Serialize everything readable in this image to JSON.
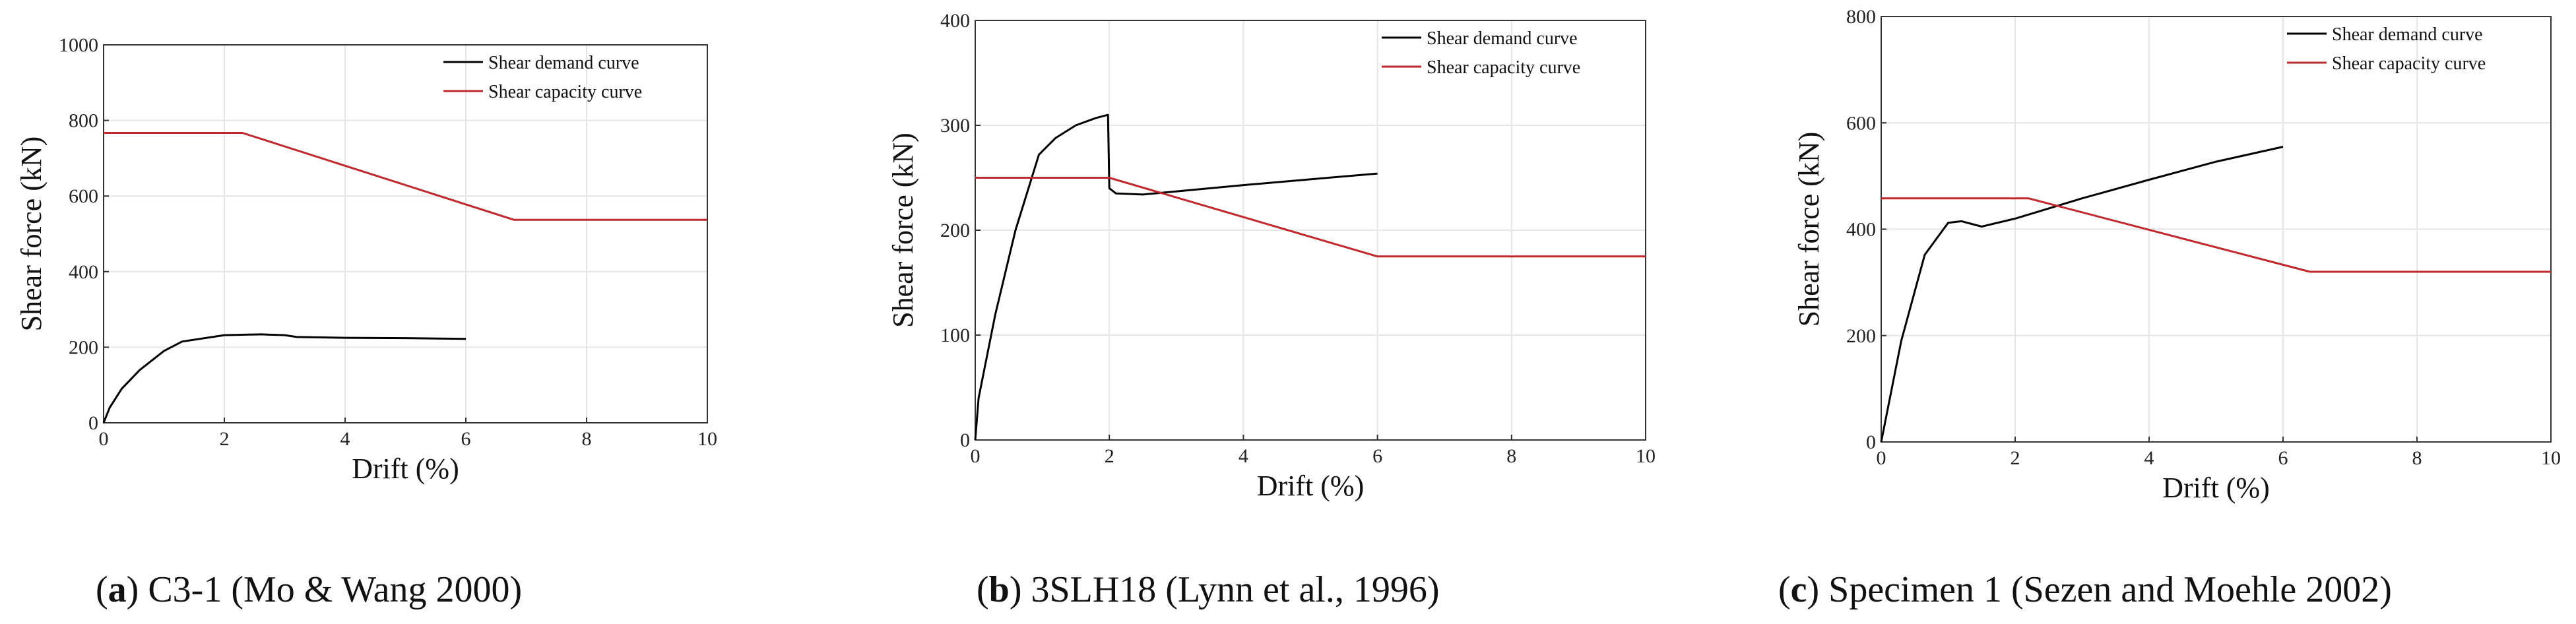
{
  "chart_data": [
    {
      "type": "line",
      "caption": {
        "letter": "a",
        "text": " C3-1 (Mo & Wang 2000)"
      },
      "xlabel": "Drift (%)",
      "ylabel": "Shear force (kN)",
      "xlim": [
        0,
        10
      ],
      "ylim": [
        0,
        1000
      ],
      "xticks": [
        "0",
        "2",
        "4",
        "6",
        "8",
        "10"
      ],
      "yticks": [
        "0",
        "200",
        "400",
        "600",
        "800",
        "1000"
      ],
      "grid": true,
      "legend": "top-right",
      "series": [
        {
          "name": "Shear demand curve",
          "color": "#000000",
          "x": [
            0,
            0.1,
            0.3,
            0.6,
            1.0,
            1.3,
            2.0,
            2.6,
            3.0,
            3.2,
            4.0,
            5.0,
            6.0
          ],
          "y": [
            0,
            40,
            90,
            140,
            190,
            215,
            232,
            234,
            232,
            227,
            225,
            224,
            222
          ]
        },
        {
          "name": "Shear capacity curve",
          "color": "#c0282d",
          "x": [
            0,
            2.3,
            6.8,
            10
          ],
          "y": [
            767,
            767,
            537,
            537
          ]
        }
      ]
    },
    {
      "type": "line",
      "caption": {
        "letter": "b",
        "text": " 3SLH18 (Lynn et al., 1996)"
      },
      "xlabel": "Drift (%)",
      "ylabel": "Shear force (kN)",
      "xlim": [
        0,
        10
      ],
      "ylim": [
        0,
        400
      ],
      "xticks": [
        "0",
        "2",
        "4",
        "6",
        "8",
        "10"
      ],
      "yticks": [
        "0",
        "100",
        "200",
        "300",
        "400"
      ],
      "grid": true,
      "legend": "top-right",
      "series": [
        {
          "name": "Shear demand curve",
          "color": "#000000",
          "x": [
            0,
            0.05,
            0.3,
            0.6,
            0.95,
            1.2,
            1.5,
            1.8,
            1.98,
            2.0,
            2.1,
            2.5,
            4.0,
            6.0
          ],
          "y": [
            0,
            40,
            120,
            200,
            272,
            288,
            300,
            307,
            310,
            240,
            235,
            234,
            243,
            254
          ]
        },
        {
          "name": "Shear capacity curve",
          "color": "#c0282d",
          "x": [
            0,
            2.0,
            6.0,
            10
          ],
          "y": [
            250,
            250,
            175,
            175
          ]
        }
      ]
    },
    {
      "type": "line",
      "caption": {
        "letter": "c",
        "text": " Specimen 1 (Sezen and Moehle 2002)"
      },
      "xlabel": "Drift (%)",
      "ylabel": "Shear force (kN)",
      "xlim": [
        0,
        10
      ],
      "ylim": [
        0,
        800
      ],
      "xticks": [
        "0",
        "2",
        "4",
        "6",
        "8",
        "10"
      ],
      "yticks": [
        "0",
        "200",
        "400",
        "600",
        "800"
      ],
      "grid": true,
      "legend": "top-right",
      "series": [
        {
          "name": "Shear demand curve",
          "color": "#000000",
          "x": [
            0,
            0.3,
            0.65,
            1.0,
            1.2,
            1.5,
            2.0,
            3.0,
            4.0,
            5.0,
            6.0
          ],
          "y": [
            0,
            190,
            352,
            412,
            415,
            405,
            420,
            458,
            493,
            527,
            555
          ]
        },
        {
          "name": "Shear capacity curve",
          "color": "#c0282d",
          "x": [
            0,
            2.2,
            6.4,
            10
          ],
          "y": [
            458,
            458,
            320,
            320
          ]
        }
      ]
    }
  ]
}
